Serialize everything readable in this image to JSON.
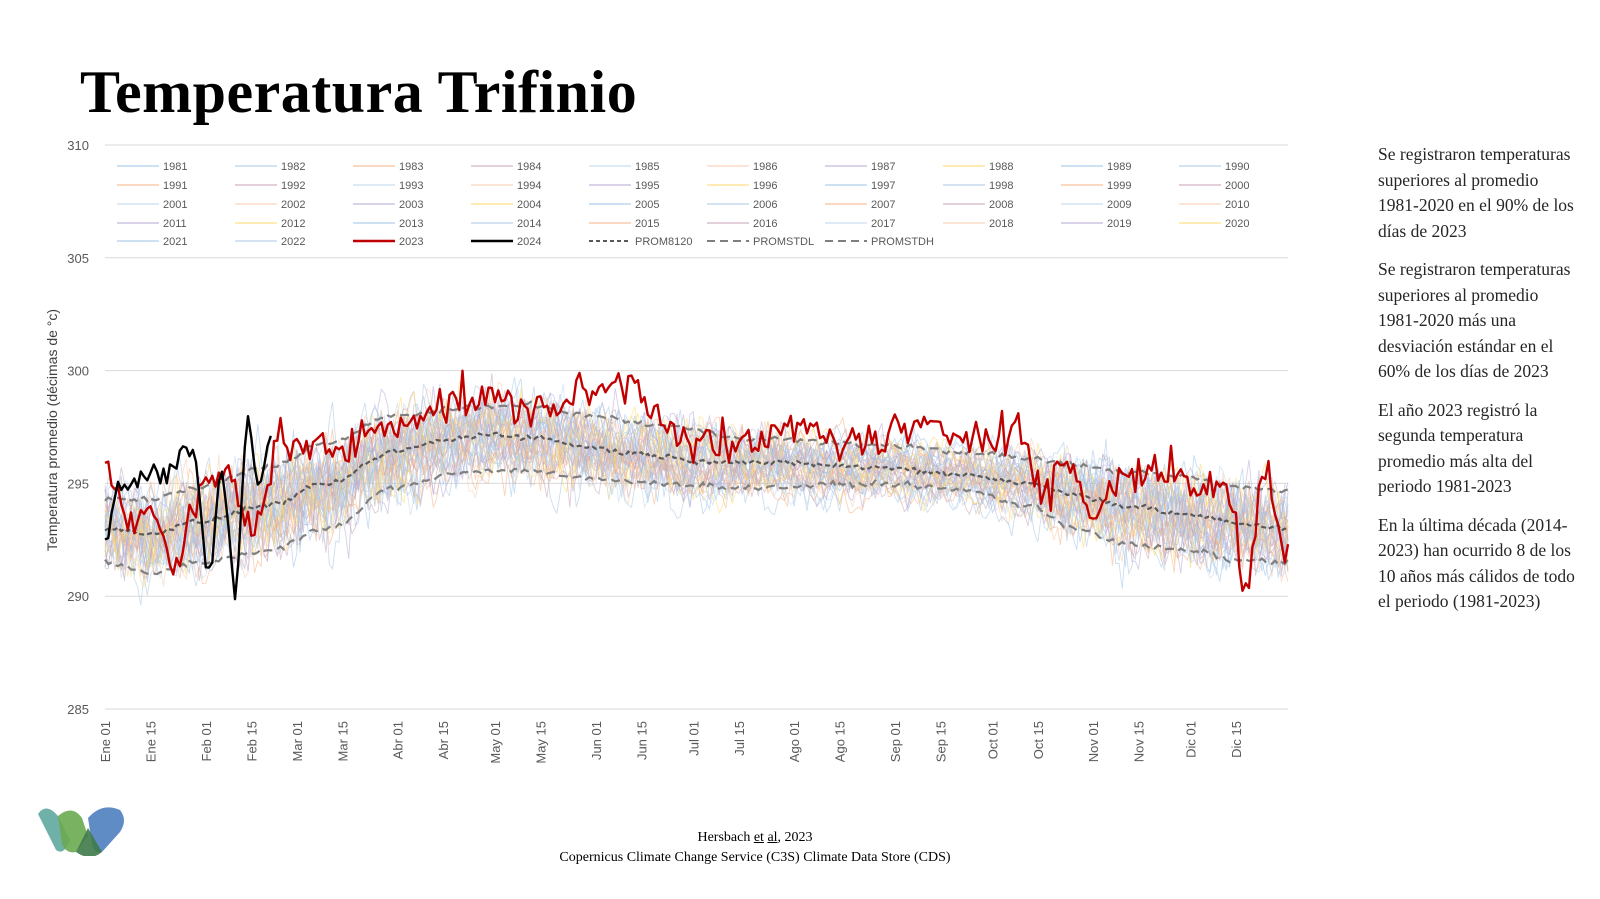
{
  "title": "Temperatura Trifinio",
  "notes": [
    "Se registraron temperaturas superiores al promedio 1981-2020 en el 90% de los días de 2023",
    "Se registraron temperaturas superiores al promedio 1981-2020 más una desviación estándar en el 60% de los días de 2023",
    "El año 2023 registró la segunda temperatura promedio más alta del periodo 1981-2023",
    "En la última década (2014-2023) han ocurrido 8 de los 10 años más cálidos de todo el periodo (1981-2023)"
  ],
  "source": {
    "line1_prefix": "Hersbach ",
    "line1_et": "et",
    "line1_al": "al",
    "line1_suffix": ", 2023",
    "line2": "Copernicus Climate Change Service (C3S) Climate Data Store (CDS)"
  },
  "colors": {
    "y2023": "#c00000",
    "y2024": "#000000",
    "mean": "#595959",
    "std": "#7f7f7f",
    "grid": "#d9d9d9",
    "logo": [
      "#5fa8a0",
      "#6aaa4f",
      "#4f7fbf",
      "#3f7a4a"
    ]
  },
  "chart_data": {
    "type": "line",
    "ylabel": "Temperatura promedio (décimas de °c)",
    "xlabel": "",
    "ylim": [
      285,
      310
    ],
    "yticks": [
      285,
      290,
      295,
      300,
      305,
      310
    ],
    "grid": true,
    "legend_position": "top",
    "x_tick_labels": [
      "Ene 01",
      "Ene 15",
      "Feb 01",
      "Feb 15",
      "Mar 01",
      "Mar 15",
      "Abr 01",
      "Abr 15",
      "May 01",
      "May 15",
      "Jun 01",
      "Jun 15",
      "Jul 01",
      "Jul 15",
      "Ago 01",
      "Ago 15",
      "Sep 01",
      "Sep 15",
      "Oct 01",
      "Oct 15",
      "Nov 01",
      "Nov 15",
      "Dic 01",
      "Dic 15"
    ],
    "x_tick_days": [
      1,
      15,
      32,
      46,
      60,
      74,
      91,
      105,
      121,
      135,
      152,
      166,
      182,
      196,
      213,
      227,
      244,
      258,
      274,
      288,
      305,
      319,
      335,
      349
    ],
    "background_years": [
      "1981",
      "1982",
      "1983",
      "1984",
      "1985",
      "1986",
      "1987",
      "1988",
      "1989",
      "1990",
      "1991",
      "1992",
      "1993",
      "1994",
      "1995",
      "1996",
      "1997",
      "1998",
      "1999",
      "2000",
      "2001",
      "2002",
      "2003",
      "2004",
      "2005",
      "2006",
      "2007",
      "2008",
      "2009",
      "2010",
      "2011",
      "2012",
      "2013",
      "2014",
      "2015",
      "2016",
      "2017",
      "2018",
      "2019",
      "2020",
      "2021",
      "2022"
    ],
    "legend_entries": [
      "1981",
      "1982",
      "1983",
      "1984",
      "1985",
      "1986",
      "1987",
      "1988",
      "1989",
      "1990",
      "1991",
      "1992",
      "1993",
      "1994",
      "1995",
      "1996",
      "1997",
      "1998",
      "1999",
      "2000",
      "2001",
      "2002",
      "2003",
      "2004",
      "2005",
      "2006",
      "2007",
      "2008",
      "2009",
      "2010",
      "2011",
      "2012",
      "2013",
      "2014",
      "2015",
      "2016",
      "2017",
      "2018",
      "2019",
      "2020",
      "2021",
      "2022",
      "2023",
      "2024",
      "PROM8120",
      "PROMSTDL",
      "PROMSTDH"
    ],
    "series_2023_anchors": [
      [
        1,
        296
      ],
      [
        8,
        293.5
      ],
      [
        15,
        294
      ],
      [
        22,
        291
      ],
      [
        30,
        294.5
      ],
      [
        38,
        295.5
      ],
      [
        46,
        293
      ],
      [
        55,
        297
      ],
      [
        65,
        296.5
      ],
      [
        75,
        296.5
      ],
      [
        85,
        297.5
      ],
      [
        95,
        298
      ],
      [
        105,
        298.5
      ],
      [
        115,
        298.8
      ],
      [
        125,
        298.5
      ],
      [
        135,
        298.3
      ],
      [
        145,
        298.8
      ],
      [
        155,
        299.2
      ],
      [
        163,
        299.5
      ],
      [
        172,
        298
      ],
      [
        182,
        297
      ],
      [
        195,
        296.5
      ],
      [
        205,
        297
      ],
      [
        215,
        297.5
      ],
      [
        225,
        297
      ],
      [
        235,
        296.8
      ],
      [
        245,
        297.3
      ],
      [
        255,
        297.3
      ],
      [
        265,
        297.2
      ],
      [
        275,
        297.4
      ],
      [
        282,
        297.4
      ],
      [
        290,
        294.5
      ],
      [
        297,
        296
      ],
      [
        305,
        293.5
      ],
      [
        312,
        295.2
      ],
      [
        320,
        295.5
      ],
      [
        330,
        295.6
      ],
      [
        340,
        294.8
      ],
      [
        347,
        294.5
      ],
      [
        352,
        290.5
      ],
      [
        358,
        295.5
      ],
      [
        365,
        291.5
      ]
    ],
    "series_2024_anchors": [
      [
        1,
        292.5
      ],
      [
        5,
        295
      ],
      [
        10,
        295
      ],
      [
        17,
        295.5
      ],
      [
        22,
        295.5
      ],
      [
        25,
        296.8
      ],
      [
        28,
        296.3
      ],
      [
        33,
        291
      ],
      [
        37,
        295.5
      ],
      [
        41,
        290.5
      ],
      [
        45,
        298
      ],
      [
        48,
        295
      ],
      [
        52,
        297
      ]
    ],
    "prom8120_anchors": [
      [
        1,
        293
      ],
      [
        15,
        292.8
      ],
      [
        30,
        293.3
      ],
      [
        50,
        294
      ],
      [
        70,
        295
      ],
      [
        90,
        296.4
      ],
      [
        105,
        296.9
      ],
      [
        120,
        297.2
      ],
      [
        135,
        297
      ],
      [
        150,
        296.6
      ],
      [
        165,
        296.3
      ],
      [
        185,
        296
      ],
      [
        210,
        295.9
      ],
      [
        240,
        295.7
      ],
      [
        265,
        295.4
      ],
      [
        285,
        295
      ],
      [
        300,
        294.5
      ],
      [
        315,
        294
      ],
      [
        335,
        293.6
      ],
      [
        350,
        293.2
      ],
      [
        365,
        293
      ]
    ],
    "promstdl_anchors": [
      [
        1,
        291.5
      ],
      [
        15,
        291
      ],
      [
        30,
        291.5
      ],
      [
        50,
        292
      ],
      [
        70,
        293
      ],
      [
        90,
        294.8
      ],
      [
        110,
        295.5
      ],
      [
        130,
        295.6
      ],
      [
        150,
        295.2
      ],
      [
        170,
        295
      ],
      [
        200,
        294.8
      ],
      [
        240,
        295
      ],
      [
        265,
        294.7
      ],
      [
        285,
        294
      ],
      [
        300,
        293
      ],
      [
        315,
        292.3
      ],
      [
        335,
        292
      ],
      [
        350,
        291.6
      ],
      [
        365,
        291.5
      ]
    ],
    "promstdh_anchors": [
      [
        1,
        294.3
      ],
      [
        15,
        294.3
      ],
      [
        30,
        294.8
      ],
      [
        50,
        295.7
      ],
      [
        70,
        296.8
      ],
      [
        90,
        298
      ],
      [
        110,
        298.3
      ],
      [
        130,
        298.5
      ],
      [
        150,
        298
      ],
      [
        170,
        297.6
      ],
      [
        200,
        297
      ],
      [
        240,
        296.7
      ],
      [
        265,
        296.4
      ],
      [
        285,
        296.1
      ],
      [
        300,
        295.8
      ],
      [
        315,
        295.5
      ],
      [
        335,
        295.3
      ],
      [
        350,
        294.8
      ],
      [
        365,
        294.7
      ]
    ]
  }
}
